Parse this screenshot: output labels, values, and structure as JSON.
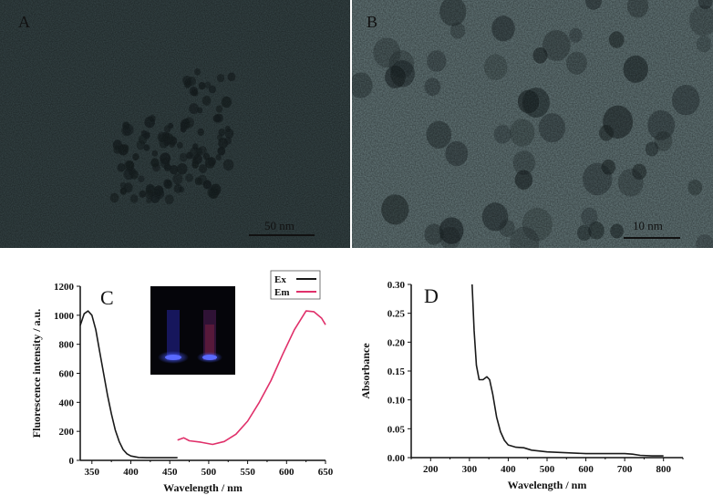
{
  "panels": {
    "A": {
      "label": "A",
      "scale_bar": "50 nm"
    },
    "B": {
      "label": "B",
      "scale_bar": "10 nm"
    },
    "C": {
      "label": "C"
    },
    "D": {
      "label": "D"
    }
  },
  "colors": {
    "ex": "#1a1a1a",
    "em": "#e0306a",
    "absorbance": "#1a1a1a",
    "tem_A": "#3a4a4c",
    "tem_B": "#6b7f81",
    "inset_bg": "#05050a",
    "inset_glow": "#3a3aff"
  },
  "chart_data": [
    {
      "panel": "C",
      "type": "line",
      "xlabel": "Wavelength / nm",
      "ylabel": "Fluorescence intensity / a.u.",
      "xlim": [
        335,
        650
      ],
      "ylim": [
        0,
        1200
      ],
      "xticks": [
        350,
        400,
        450,
        500,
        550,
        600,
        650
      ],
      "yticks": [
        0,
        200,
        400,
        600,
        800,
        1000,
        1200
      ],
      "grid": false,
      "legend_position": "top-right",
      "inset": "photo of two vials under UV light",
      "series": [
        {
          "name": "Ex",
          "color": "#1a1a1a",
          "x": [
            335,
            340,
            345,
            350,
            355,
            360,
            365,
            370,
            375,
            380,
            385,
            390,
            395,
            400,
            410,
            420,
            460
          ],
          "y": [
            930,
            1010,
            1030,
            1000,
            900,
            750,
            600,
            450,
            320,
            210,
            130,
            75,
            45,
            30,
            20,
            18,
            18
          ]
        },
        {
          "name": "Em",
          "color": "#e0306a",
          "x": [
            460,
            468,
            475,
            490,
            505,
            520,
            535,
            550,
            565,
            580,
            595,
            610,
            625,
            635,
            645,
            650
          ],
          "y": [
            140,
            155,
            135,
            125,
            110,
            130,
            180,
            270,
            400,
            550,
            730,
            900,
            1030,
            1025,
            980,
            935
          ]
        }
      ]
    },
    {
      "panel": "D",
      "type": "line",
      "xlabel": "Wavelength / nm",
      "ylabel": "Absorbance",
      "xlim": [
        150,
        850
      ],
      "ylim": [
        0,
        0.3
      ],
      "xticks": [
        200,
        300,
        400,
        500,
        600,
        700,
        800
      ],
      "yticks": [
        "0.00",
        "0.05",
        "0.10",
        "0.15",
        "0.20",
        "0.25",
        "0.30"
      ],
      "grid": false,
      "series": [
        {
          "color": "#1a1a1a",
          "x": [
            307,
            312,
            318,
            325,
            335,
            345,
            352,
            360,
            370,
            380,
            390,
            400,
            420,
            440,
            460,
            500,
            600,
            700,
            720,
            740,
            770,
            800
          ],
          "y": [
            0.3,
            0.22,
            0.16,
            0.135,
            0.135,
            0.14,
            0.135,
            0.11,
            0.07,
            0.045,
            0.03,
            0.022,
            0.018,
            0.017,
            0.013,
            0.01,
            0.007,
            0.007,
            0.006,
            0.004,
            0.003,
            0.003
          ]
        }
      ]
    }
  ]
}
